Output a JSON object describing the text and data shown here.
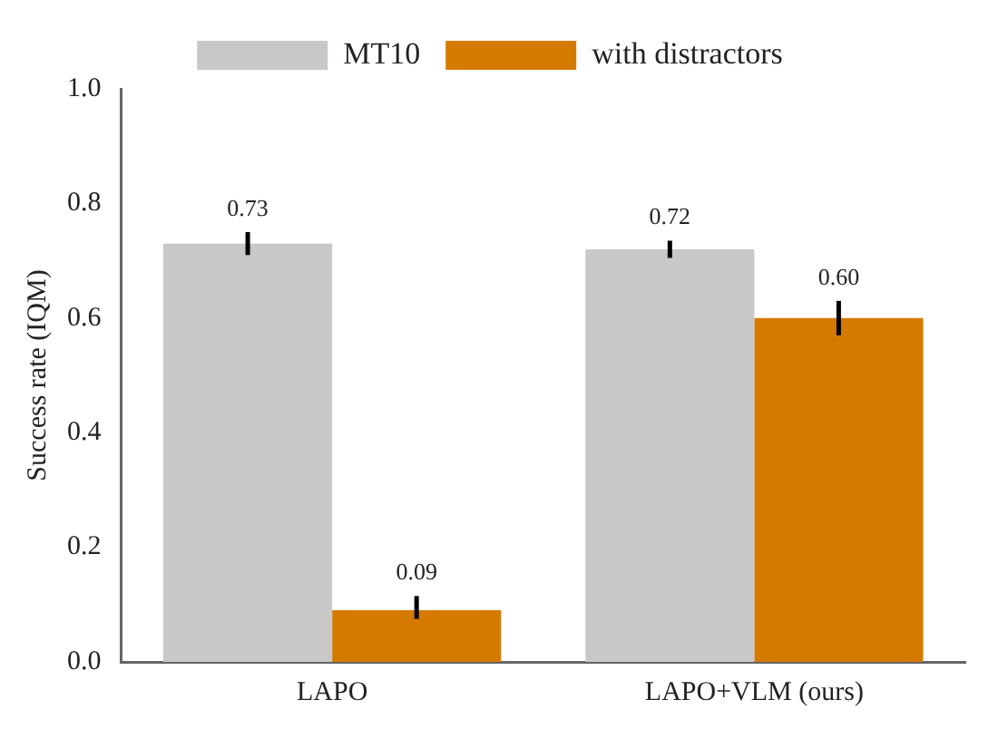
{
  "chart_data": {
    "type": "bar",
    "ylabel": "Success rate (IQM)",
    "categories": [
      "LAPO",
      "LAPO+VLM (ours)"
    ],
    "series": [
      {
        "name": "MT10",
        "color": "#c8c8c8",
        "values": [
          0.73,
          0.72
        ],
        "value_labels": [
          "0.73",
          "0.72"
        ],
        "errors": [
          [
            0.71,
            0.75
          ],
          [
            0.705,
            0.735
          ]
        ]
      },
      {
        "name": "with distractors",
        "color": "#d47a00",
        "values": [
          0.09,
          0.6
        ],
        "value_labels": [
          "0.09",
          "0.60"
        ],
        "errors": [
          [
            0.075,
            0.115
          ],
          [
            0.57,
            0.63
          ]
        ]
      }
    ],
    "ylim": [
      0,
      1
    ],
    "yticks": [
      {
        "value": 0,
        "label": "0.0"
      },
      0.2,
      0.4,
      0.6,
      0.8,
      {
        "value": 1,
        "label": "1.0"
      }
    ],
    "grid": false,
    "legend": "top"
  }
}
